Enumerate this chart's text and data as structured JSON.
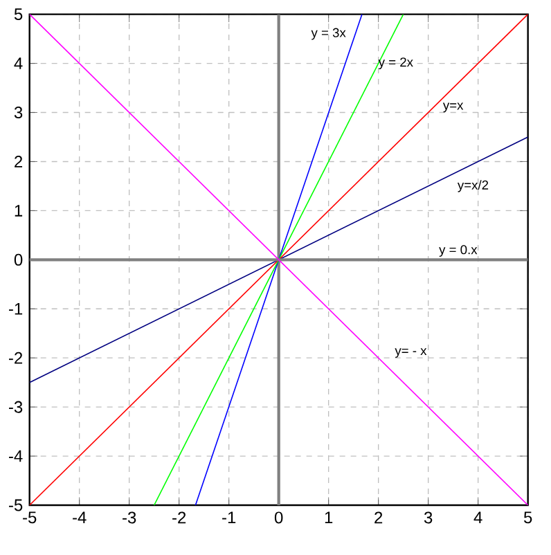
{
  "chart_data": {
    "type": "line",
    "xlim": [
      -5,
      5
    ],
    "ylim": [
      -5,
      5
    ],
    "xticks": [
      -5,
      -4,
      -3,
      -2,
      -1,
      0,
      1,
      2,
      3,
      4,
      5
    ],
    "yticks": [
      -5,
      -4,
      -3,
      -2,
      -1,
      0,
      1,
      2,
      3,
      4,
      5
    ],
    "grid": true,
    "marker": "none",
    "line_style": "solid",
    "ref_lines": [
      {
        "axis": "x",
        "value": 0,
        "color": "#808080"
      }
    ],
    "series": [
      {
        "name": "y = 3x",
        "color": "#0000ff",
        "x": [
          -1.67,
          1.67
        ],
        "values": [
          -5,
          5
        ]
      },
      {
        "name": "y = 2x",
        "color": "#00ff00",
        "x": [
          -2.5,
          2.5
        ],
        "values": [
          -5,
          5
        ]
      },
      {
        "name": "y=x",
        "color": "#ff0000",
        "x": [
          -5,
          5
        ],
        "values": [
          -5,
          5
        ]
      },
      {
        "name": "y=x/2",
        "color": "#000080",
        "x": [
          -5,
          5
        ],
        "values": [
          -2.5,
          2.5
        ]
      },
      {
        "name": "y = 0.x",
        "color": "#808080",
        "x": [
          -5,
          5
        ],
        "values": [
          0,
          0
        ]
      },
      {
        "name": "y= - x",
        "color": "#ff00ff",
        "x": [
          -5,
          5
        ],
        "values": [
          5,
          -5
        ]
      }
    ]
  }
}
